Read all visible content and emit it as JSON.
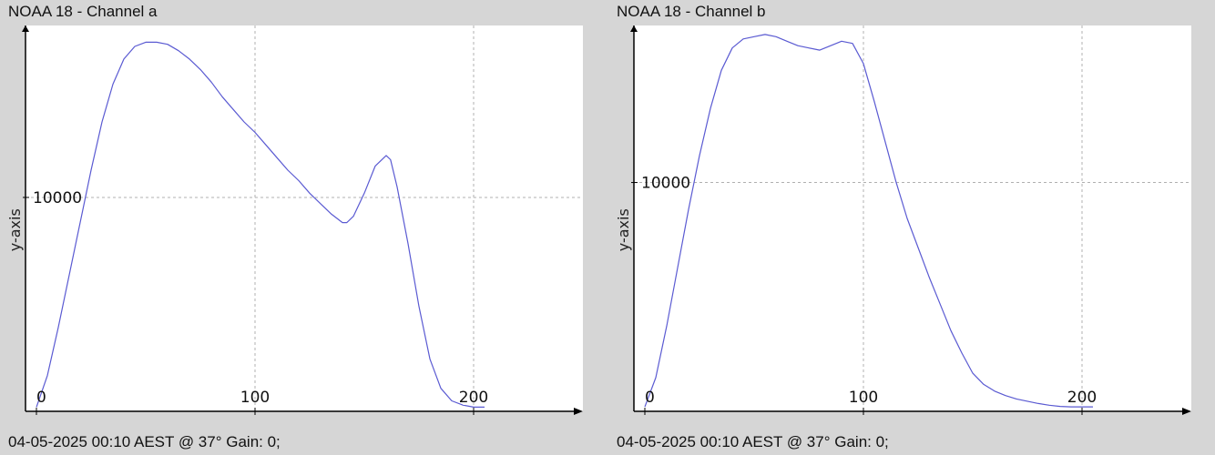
{
  "panels": [
    {
      "title": "NOAA 18 - Channel a",
      "footer": "04-05-2025 00:10 AEST @ 37° Gain: 0;"
    },
    {
      "title": "NOAA 18 - Channel b",
      "footer": "04-05-2025 00:10 AEST @ 37° Gain: 0;"
    }
  ],
  "colors": {
    "line": "#5a5ad2",
    "background": "#d6d6d6",
    "plot_area": "#ffffff",
    "grid": "#b0b0b0",
    "axis": "#000000"
  },
  "chart_data": [
    {
      "type": "line",
      "title": "NOAA 18 - Channel a",
      "xlabel": "",
      "ylabel": "y-axis",
      "xlim": [
        -5,
        250
      ],
      "ylim": [
        -200,
        18200
      ],
      "x_ticks": [
        0,
        100,
        200
      ],
      "x_tick_labels": [
        "0",
        "100",
        "200"
      ],
      "y_ticks": [
        10000
      ],
      "y_tick_labels": [
        "10000"
      ],
      "grid": true,
      "series": [
        {
          "x": [
            0,
            5,
            10,
            15,
            20,
            25,
            30,
            35,
            40,
            45,
            50,
            55,
            60,
            65,
            70,
            75,
            80,
            85,
            90,
            95,
            100,
            105,
            110,
            115,
            120,
            125,
            130,
            135,
            140,
            142,
            145,
            150,
            155,
            160,
            162,
            165,
            170,
            175,
            180,
            185,
            190,
            195,
            200,
            205
          ],
          "y": [
            0,
            1500,
            3800,
            6300,
            8800,
            11300,
            13600,
            15400,
            16600,
            17200,
            17400,
            17400,
            17300,
            17000,
            16600,
            16100,
            15500,
            14800,
            14200,
            13600,
            13100,
            12500,
            11900,
            11300,
            10800,
            10200,
            9700,
            9200,
            8800,
            8800,
            9100,
            10200,
            11500,
            12000,
            11800,
            10500,
            7800,
            4800,
            2300,
            900,
            300,
            100,
            0,
            0
          ]
        }
      ]
    },
    {
      "type": "line",
      "title": "NOAA 18 - Channel b",
      "xlabel": "",
      "ylabel": "y-axis",
      "xlim": [
        -5,
        250
      ],
      "ylim": [
        -200,
        17000
      ],
      "x_ticks": [
        0,
        100,
        200
      ],
      "x_tick_labels": [
        "0",
        "100",
        "200"
      ],
      "y_ticks": [
        10000
      ],
      "y_tick_labels": [
        "10000"
      ],
      "grid": true,
      "series": [
        {
          "x": [
            0,
            5,
            10,
            15,
            20,
            25,
            30,
            35,
            40,
            45,
            50,
            55,
            60,
            65,
            70,
            75,
            80,
            85,
            90,
            95,
            100,
            105,
            110,
            115,
            120,
            125,
            130,
            135,
            140,
            145,
            150,
            155,
            160,
            165,
            170,
            175,
            180,
            185,
            190,
            195,
            200,
            205
          ],
          "y": [
            0,
            1300,
            3600,
            6200,
            8800,
            11200,
            13300,
            15000,
            16000,
            16400,
            16500,
            16600,
            16500,
            16300,
            16100,
            16000,
            15900,
            16100,
            16300,
            16200,
            15300,
            13600,
            11800,
            10000,
            8400,
            7100,
            5800,
            4600,
            3400,
            2400,
            1500,
            1000,
            700,
            500,
            350,
            250,
            150,
            70,
            20,
            0,
            0,
            0
          ]
        }
      ]
    }
  ]
}
